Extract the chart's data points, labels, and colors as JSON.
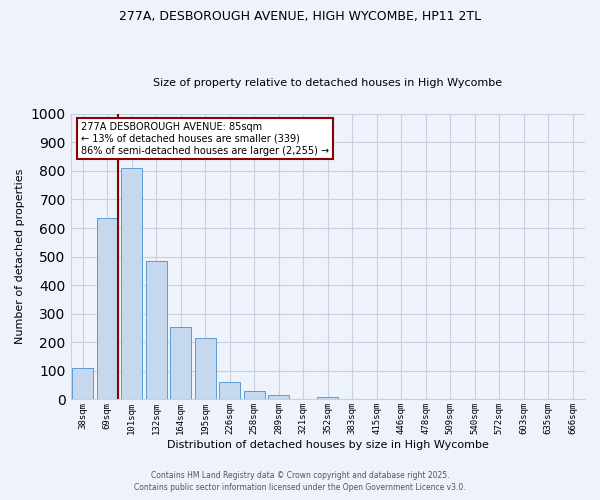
{
  "title1": "277A, DESBOROUGH AVENUE, HIGH WYCOMBE, HP11 2TL",
  "title2": "Size of property relative to detached houses in High Wycombe",
  "xlabel": "Distribution of detached houses by size in High Wycombe",
  "ylabel": "Number of detached properties",
  "categories": [
    "38sqm",
    "69sqm",
    "101sqm",
    "132sqm",
    "164sqm",
    "195sqm",
    "226sqm",
    "258sqm",
    "289sqm",
    "321sqm",
    "352sqm",
    "383sqm",
    "415sqm",
    "446sqm",
    "478sqm",
    "509sqm",
    "540sqm",
    "572sqm",
    "603sqm",
    "635sqm",
    "666sqm"
  ],
  "values": [
    110,
    635,
    810,
    485,
    255,
    215,
    60,
    28,
    15,
    0,
    8,
    0,
    0,
    0,
    0,
    0,
    0,
    0,
    0,
    0,
    0
  ],
  "bar_color": "#c5d8ed",
  "bar_edge_color": "#5b9bd5",
  "ylim": [
    0,
    1000
  ],
  "yticks": [
    0,
    100,
    200,
    300,
    400,
    500,
    600,
    700,
    800,
    900,
    1000
  ],
  "property_line_x": 1.42,
  "annotation_text": "277A DESBOROUGH AVENUE: 85sqm\n← 13% of detached houses are smaller (339)\n86% of semi-detached houses are larger (2,255) →",
  "annotation_box_color": "#ffffff",
  "annotation_border_color": "#8b0000",
  "vline_color": "#8b0000",
  "footer1": "Contains HM Land Registry data © Crown copyright and database right 2025.",
  "footer2": "Contains public sector information licensed under the Open Government Licence v3.0.",
  "bg_color": "#eef2fb",
  "grid_color": "#c8cfe0"
}
